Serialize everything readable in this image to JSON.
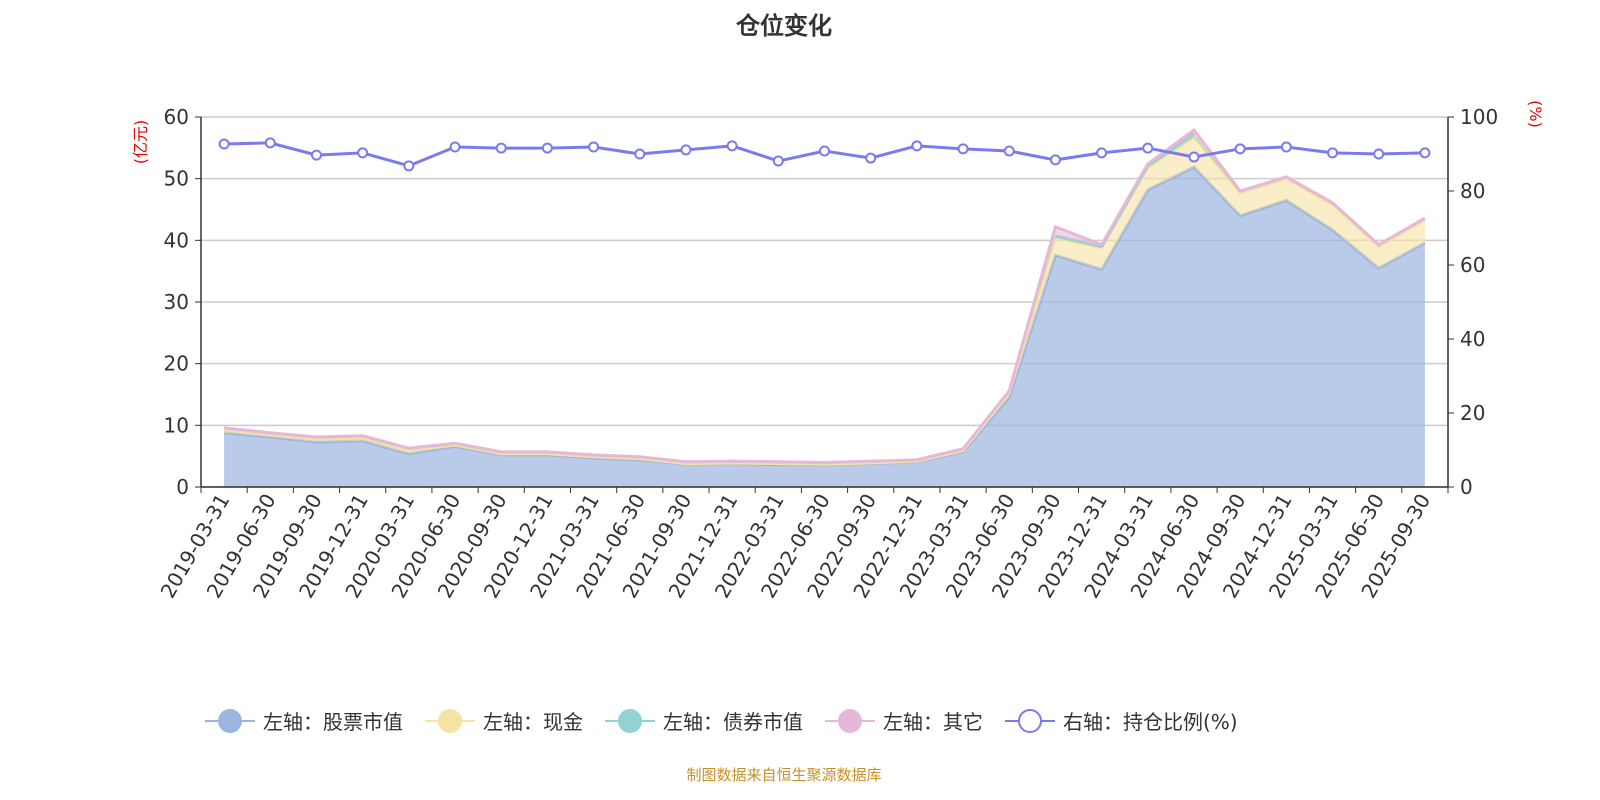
{
  "chart_data": {
    "type": "area",
    "title": "仓位变化",
    "ylabel_left": "(亿元)",
    "ylabel_right": "(%)",
    "ylim_left": [
      0,
      60
    ],
    "ylim_right": [
      0,
      100
    ],
    "yticks_left": [
      0,
      10,
      20,
      30,
      40,
      50,
      60
    ],
    "yticks_right": [
      0,
      20,
      40,
      60,
      80,
      100
    ],
    "grid": true,
    "legend_position": "bottom",
    "x": [
      "2019-03-31",
      "2019-06-30",
      "2019-09-30",
      "2019-12-31",
      "2020-03-31",
      "2020-06-30",
      "2020-09-30",
      "2020-12-31",
      "2021-03-31",
      "2021-06-30",
      "2021-09-30",
      "2021-12-31",
      "2022-03-31",
      "2022-06-30",
      "2022-09-30",
      "2022-12-31",
      "2023-03-31",
      "2023-06-30",
      "2023-09-30",
      "2023-12-31",
      "2024-03-31",
      "2024-06-30",
      "2024-09-30",
      "2024-12-31",
      "2025-03-31",
      "2025-06-30",
      "2025-09-30"
    ],
    "series": [
      {
        "name": "左轴：股票市值",
        "axis": "left",
        "color": "#9bb5e0",
        "values": [
          8.8,
          8.1,
          7.3,
          7.5,
          5.4,
          6.6,
          5.2,
          5.2,
          4.7,
          4.4,
          3.7,
          3.8,
          3.6,
          3.6,
          3.8,
          4.1,
          5.7,
          14.6,
          37.6,
          35.3,
          48.2,
          51.9,
          44.0,
          46.5,
          41.7,
          35.5,
          39.6
        ]
      },
      {
        "name": "左轴：现金",
        "axis": "left",
        "color": "#f5e3a3",
        "values": [
          0.5,
          0.4,
          0.5,
          0.5,
          0.6,
          0.2,
          0.2,
          0.2,
          0.2,
          0.2,
          0.1,
          0.1,
          0.2,
          0.1,
          0.1,
          0.1,
          0.2,
          0.7,
          2.8,
          3.5,
          3.6,
          4.8,
          3.7,
          3.5,
          4.1,
          3.5,
          3.7
        ]
      },
      {
        "name": "左轴：债券市值",
        "axis": "left",
        "color": "#93d2d2",
        "values": [
          0,
          0,
          0,
          0,
          0,
          0,
          0,
          0,
          0,
          0,
          0,
          0,
          0,
          0,
          0,
          0,
          0,
          0,
          0.3,
          0.2,
          0.3,
          0.6,
          0,
          0,
          0,
          0,
          0
        ]
      },
      {
        "name": "左轴：其它",
        "axis": "left",
        "color": "#e6b8d8",
        "values": [
          0.3,
          0.3,
          0.3,
          0.3,
          0.3,
          0.3,
          0.3,
          0.3,
          0.3,
          0.3,
          0.3,
          0.3,
          0.3,
          0.3,
          0.3,
          0.2,
          0.3,
          0.3,
          1.5,
          0.3,
          0.3,
          0.6,
          0.3,
          0.3,
          0.3,
          0.3,
          0.3
        ]
      },
      {
        "name": "右轴：持仓比例(%)",
        "axis": "right",
        "color": "#7b7bef",
        "values": [
          92.7,
          93.0,
          89.7,
          90.3,
          86.8,
          91.9,
          91.6,
          91.6,
          91.9,
          90.0,
          91.1,
          92.2,
          88.1,
          90.8,
          88.9,
          92.2,
          91.4,
          90.8,
          88.4,
          90.3,
          91.6,
          89.2,
          91.4,
          91.9,
          90.3,
          90.0,
          90.3
        ]
      }
    ]
  },
  "footer": "制图数据来自恒生聚源数据库"
}
